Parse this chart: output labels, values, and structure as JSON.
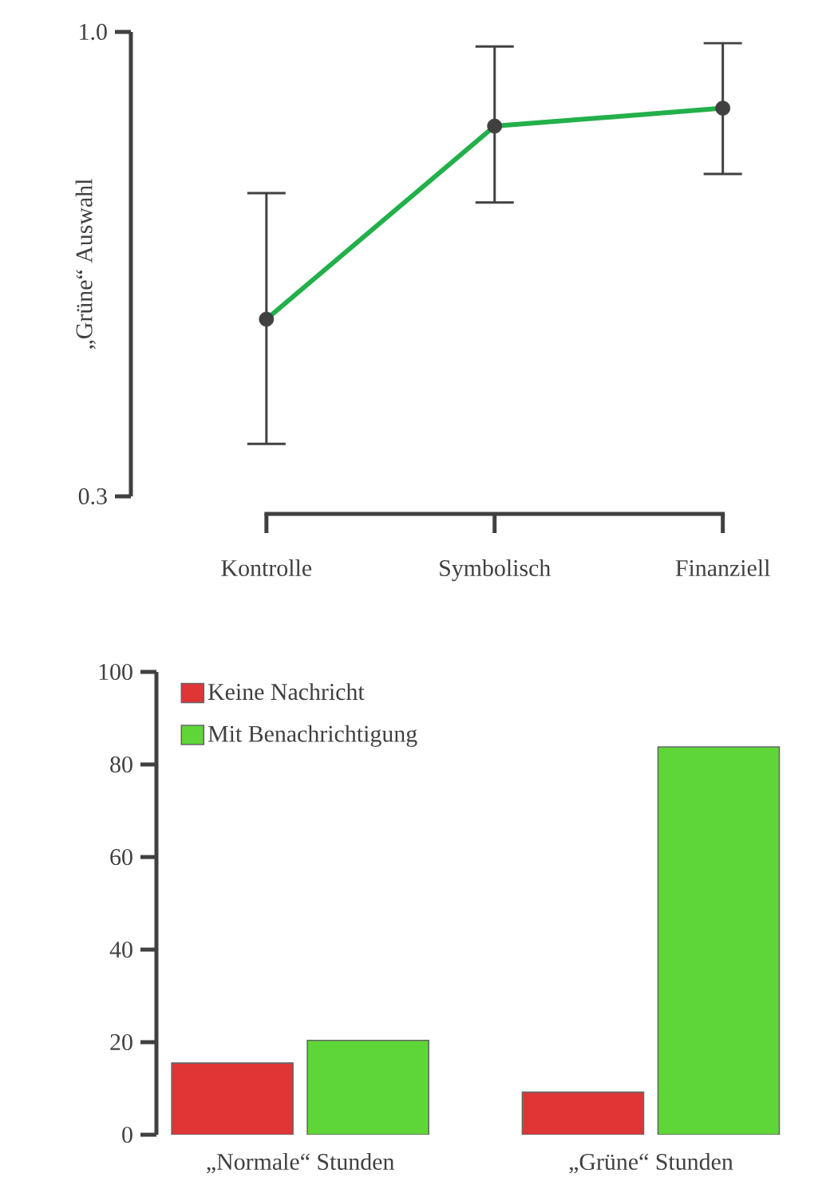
{
  "chart_data": [
    {
      "type": "line",
      "ylabel": "„Grüne“ Auswahl",
      "categories": [
        "Kontrolle",
        "Symbolisch",
        "Finanziell"
      ],
      "series": [
        {
          "color": "#22b04a",
          "values": [
            0.567,
            0.858,
            0.885
          ],
          "errors": [
            [
              0.379,
              0.757
            ],
            [
              0.743,
              0.978
            ],
            [
              0.786,
              0.983
            ]
          ]
        }
      ],
      "marker": "circle",
      "ylim": [
        0.3,
        1.0
      ],
      "yticks": [
        0.3,
        {
          "value": 1.0,
          "label": "1.0"
        }
      ],
      "grid": false,
      "legend": false
    },
    {
      "type": "bar",
      "categories": [
        "„Normale“ Stunden",
        "„Grüne“ Stunden"
      ],
      "series": [
        {
          "name": "Keine Nachricht",
          "color": "#e03535",
          "values": [
            15.5,
            9.2
          ]
        },
        {
          "name": "Mit Benachrichtigung",
          "color": "#5fd638",
          "values": [
            20.4,
            83.8
          ]
        }
      ],
      "ylim": [
        0,
        100
      ],
      "yticks": [
        0,
        20,
        40,
        60,
        80,
        100
      ],
      "grid": false,
      "legend": "top left"
    }
  ]
}
